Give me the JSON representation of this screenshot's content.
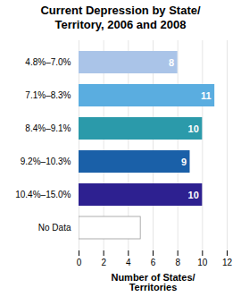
{
  "chart_data": {
    "type": "bar",
    "orientation": "horizontal",
    "title": "Current Depression by State/\nTerritory, 2006 and 2008",
    "categories": [
      "4.8%–7.0%",
      "7.1%–8.3%",
      "8.4%–9.1%",
      "9.2%–10.3%",
      "10.4%–15.0%",
      "No Data"
    ],
    "values": [
      8,
      11,
      10,
      9,
      10,
      5
    ],
    "colors": [
      "#aac4e8",
      "#5aade0",
      "#2b9aaa",
      "#1a60a8",
      "#2d2090",
      "#ffffff"
    ],
    "value_labels": [
      "8",
      "11",
      "10",
      "9",
      "10",
      null
    ],
    "data_labels": true,
    "xlabel": "Number of States/\nTerritories",
    "xlim": [
      0,
      12
    ],
    "xticks": [
      0,
      2,
      4,
      6,
      8,
      10,
      12
    ],
    "grid": true
  }
}
